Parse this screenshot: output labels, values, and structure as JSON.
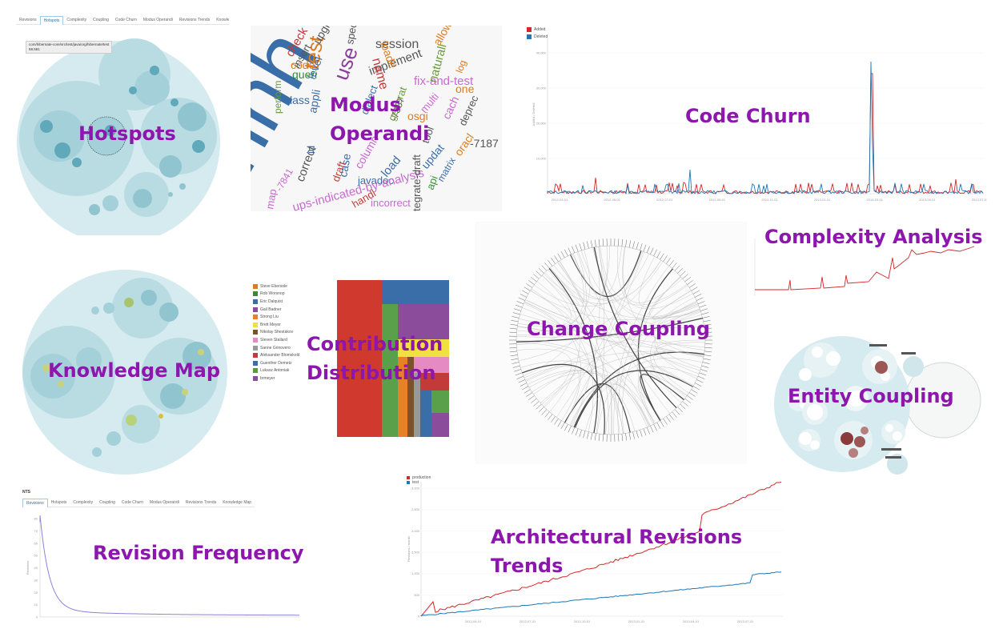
{
  "collage_titles": {
    "hotspots": "Hotspots",
    "modus": [
      "Modus",
      "Operandi"
    ],
    "code_churn": "Code Churn",
    "complexity": "Complexity Analysis",
    "knowledge": "Knowledge Map",
    "contribution": [
      "Contribution",
      "Distribution"
    ],
    "change_coupling": "Change Coupling",
    "entity_coupling": "Entity Coupling",
    "revision_frequency": "Revision Frequency",
    "arch_trends": [
      "Architectural Revisions",
      "Trends"
    ]
  },
  "hotspots_view": {
    "tabs": [
      "Revisions",
      "Hotspots",
      "Complexity",
      "Coupling",
      "Code Churn",
      "Modus Operandi",
      "Revisions Trends",
      "Knowledge Map"
    ],
    "active_tab": "Hotspots",
    "tooltip": [
      "com/hibernate-core/src/test/java/org/hibernate/test",
      "58.581"
    ]
  },
  "revisions_view": {
    "heading": "NTS",
    "tabs": [
      "Revisions",
      "Hotspots",
      "Complexity",
      "Coupling",
      "Code Churn",
      "Modus Operandi",
      "Revisions Trends",
      "Knowledge Map"
    ],
    "active_tab": "Revisions"
  },
  "word_cloud": [
    {
      "t": "hhh",
      "c": "#3a6ea8"
    },
    {
      "t": "test",
      "c": "#e07b1c"
    },
    {
      "t": "use",
      "c": "#8b3d9b"
    },
    {
      "t": "session",
      "c": "#555555"
    },
    {
      "t": "implement",
      "c": "#555555"
    },
    {
      "t": "name",
      "c": "#c33a3a"
    },
    {
      "t": "loade",
      "c": "#e07b1c"
    },
    {
      "t": "fix-and-test",
      "c": "#c86ad0"
    },
    {
      "t": "naturali",
      "c": "#6a9a3a"
    },
    {
      "t": "allow",
      "c": "#e07b1c"
    },
    {
      "t": "code",
      "c": "#e07b1c"
    },
    {
      "t": "queri",
      "c": "#3a8a3a"
    },
    {
      "t": "class",
      "c": "#3a6ea8"
    },
    {
      "t": "perform",
      "c": "#6a9a3a"
    },
    {
      "t": "correct",
      "c": "#555555"
    },
    {
      "t": "case",
      "c": "#3a6ea8"
    },
    {
      "t": "column",
      "c": "#c86ad0"
    },
    {
      "t": "load",
      "c": "#3a6ea8"
    },
    {
      "t": "javadoc",
      "c": "#3a6ea8"
    },
    {
      "t": "incorrect",
      "c": "#c86ad0"
    },
    {
      "t": "handl",
      "c": "#c33a3a"
    },
    {
      "t": "map",
      "c": "#c86ad0"
    },
    {
      "t": "-7841",
      "c": "#c86ad0"
    },
    {
      "t": "updat",
      "c": "#3a6ea8"
    },
    {
      "t": "matrix",
      "c": "#3a6ea8"
    },
    {
      "t": "api",
      "c": "#3a8a3a"
    },
    {
      "t": "oracl",
      "c": "#e07b1c"
    },
    {
      "t": "deprec",
      "c": "#555555"
    },
    {
      "t": "-7187",
      "c": "#555555"
    },
    {
      "t": "cach",
      "c": "#c86ad0"
    },
    {
      "t": "osgi",
      "c": "#e07b1c"
    },
    {
      "t": "multi",
      "c": "#c86ad0"
    },
    {
      "t": "one",
      "c": "#e07b1c"
    },
    {
      "t": "log",
      "c": "#e07b1c"
    },
    {
      "t": "-7387",
      "c": "#555555"
    },
    {
      "t": "insert",
      "c": "#555555"
    },
    {
      "t": "check",
      "c": "#c33a3a"
    },
    {
      "t": "level",
      "c": "#3a6ea8"
    },
    {
      "t": "upgrad",
      "c": "#555555"
    },
    {
      "t": "spec",
      "c": "#555555"
    },
    {
      "t": "id",
      "c": "#3a6ea8"
    },
    {
      "t": "appli",
      "c": "#3a6ea8"
    },
    {
      "t": "dialect",
      "c": "#3a6ea8"
    },
    {
      "t": "tool",
      "c": "#555555"
    },
    {
      "t": "generat",
      "c": "#6a9a3a"
    },
    {
      "t": "draft",
      "c": "#c33a3a"
    },
    {
      "t": "ups-indicated-by-analysis",
      "c": "#c86ad0"
    },
    {
      "t": "tegrate-draft",
      "c": "#555555"
    }
  ],
  "code_churn_chart": {
    "legend": [
      {
        "name": "Added",
        "color": "#d62728"
      },
      {
        "name": "Deleted",
        "color": "#1f77b4"
      }
    ],
    "ylabel": "Added / Deleted",
    "y_ticks": [
      "",
      "10,000",
      "20,000",
      "30,000",
      "40,000"
    ],
    "x_ticks": [
      "2012-03-01",
      "2012-05-01",
      "2012-07-01",
      "2012-09-01",
      "2012-11-01",
      "2013-01-01",
      "2013-03-01",
      "2013-05-01",
      "2013-07-01"
    ]
  },
  "contributors": [
    {
      "name": "Steve Ebersole",
      "color": "#e07b1c"
    },
    {
      "name": "Rob Worsnop",
      "color": "#3a8a3a"
    },
    {
      "name": "Eric Dalquist",
      "color": "#3a6ea8"
    },
    {
      "name": "Gail Badner",
      "color": "#8b4d9b"
    },
    {
      "name": "Strong Liu",
      "color": "#e8802a"
    },
    {
      "name": "Brett Meyer",
      "color": "#f0e040"
    },
    {
      "name": "Nikolay Shestakov",
      "color": "#7a5230"
    },
    {
      "name": "Steven Stallard",
      "color": "#e58ac2"
    },
    {
      "name": "Sanne Grinovero",
      "color": "#999999"
    },
    {
      "name": "Aleksander Blomskold",
      "color": "#c33a3a"
    },
    {
      "name": "Guenther Demetz",
      "color": "#3a6ea8"
    },
    {
      "name": "Lukasz Antoniak",
      "color": "#5a9a3a"
    },
    {
      "name": "brmeyer",
      "color": "#8b4d9b"
    }
  ],
  "arch_chart": {
    "legend": [
      {
        "name": "production",
        "color": "#d62728"
      },
      {
        "name": "test",
        "color": "#1f77b4"
      }
    ],
    "ylabel": "Revisions / month",
    "y_ticks": [
      "0",
      "500",
      "1,000",
      "1,500",
      "2,000",
      "2,500",
      "3,000"
    ],
    "x_ticks": [
      "2012-04-01",
      "2012-07-01",
      "2012-10-01",
      "2013-01-01",
      "2013-04-01",
      "2013-07-01"
    ]
  },
  "revision_chart": {
    "y_ticks": [
      "0",
      "10",
      "20",
      "30",
      "40",
      "50",
      "60",
      "70",
      "80"
    ],
    "ylabel": "Revisions"
  }
}
